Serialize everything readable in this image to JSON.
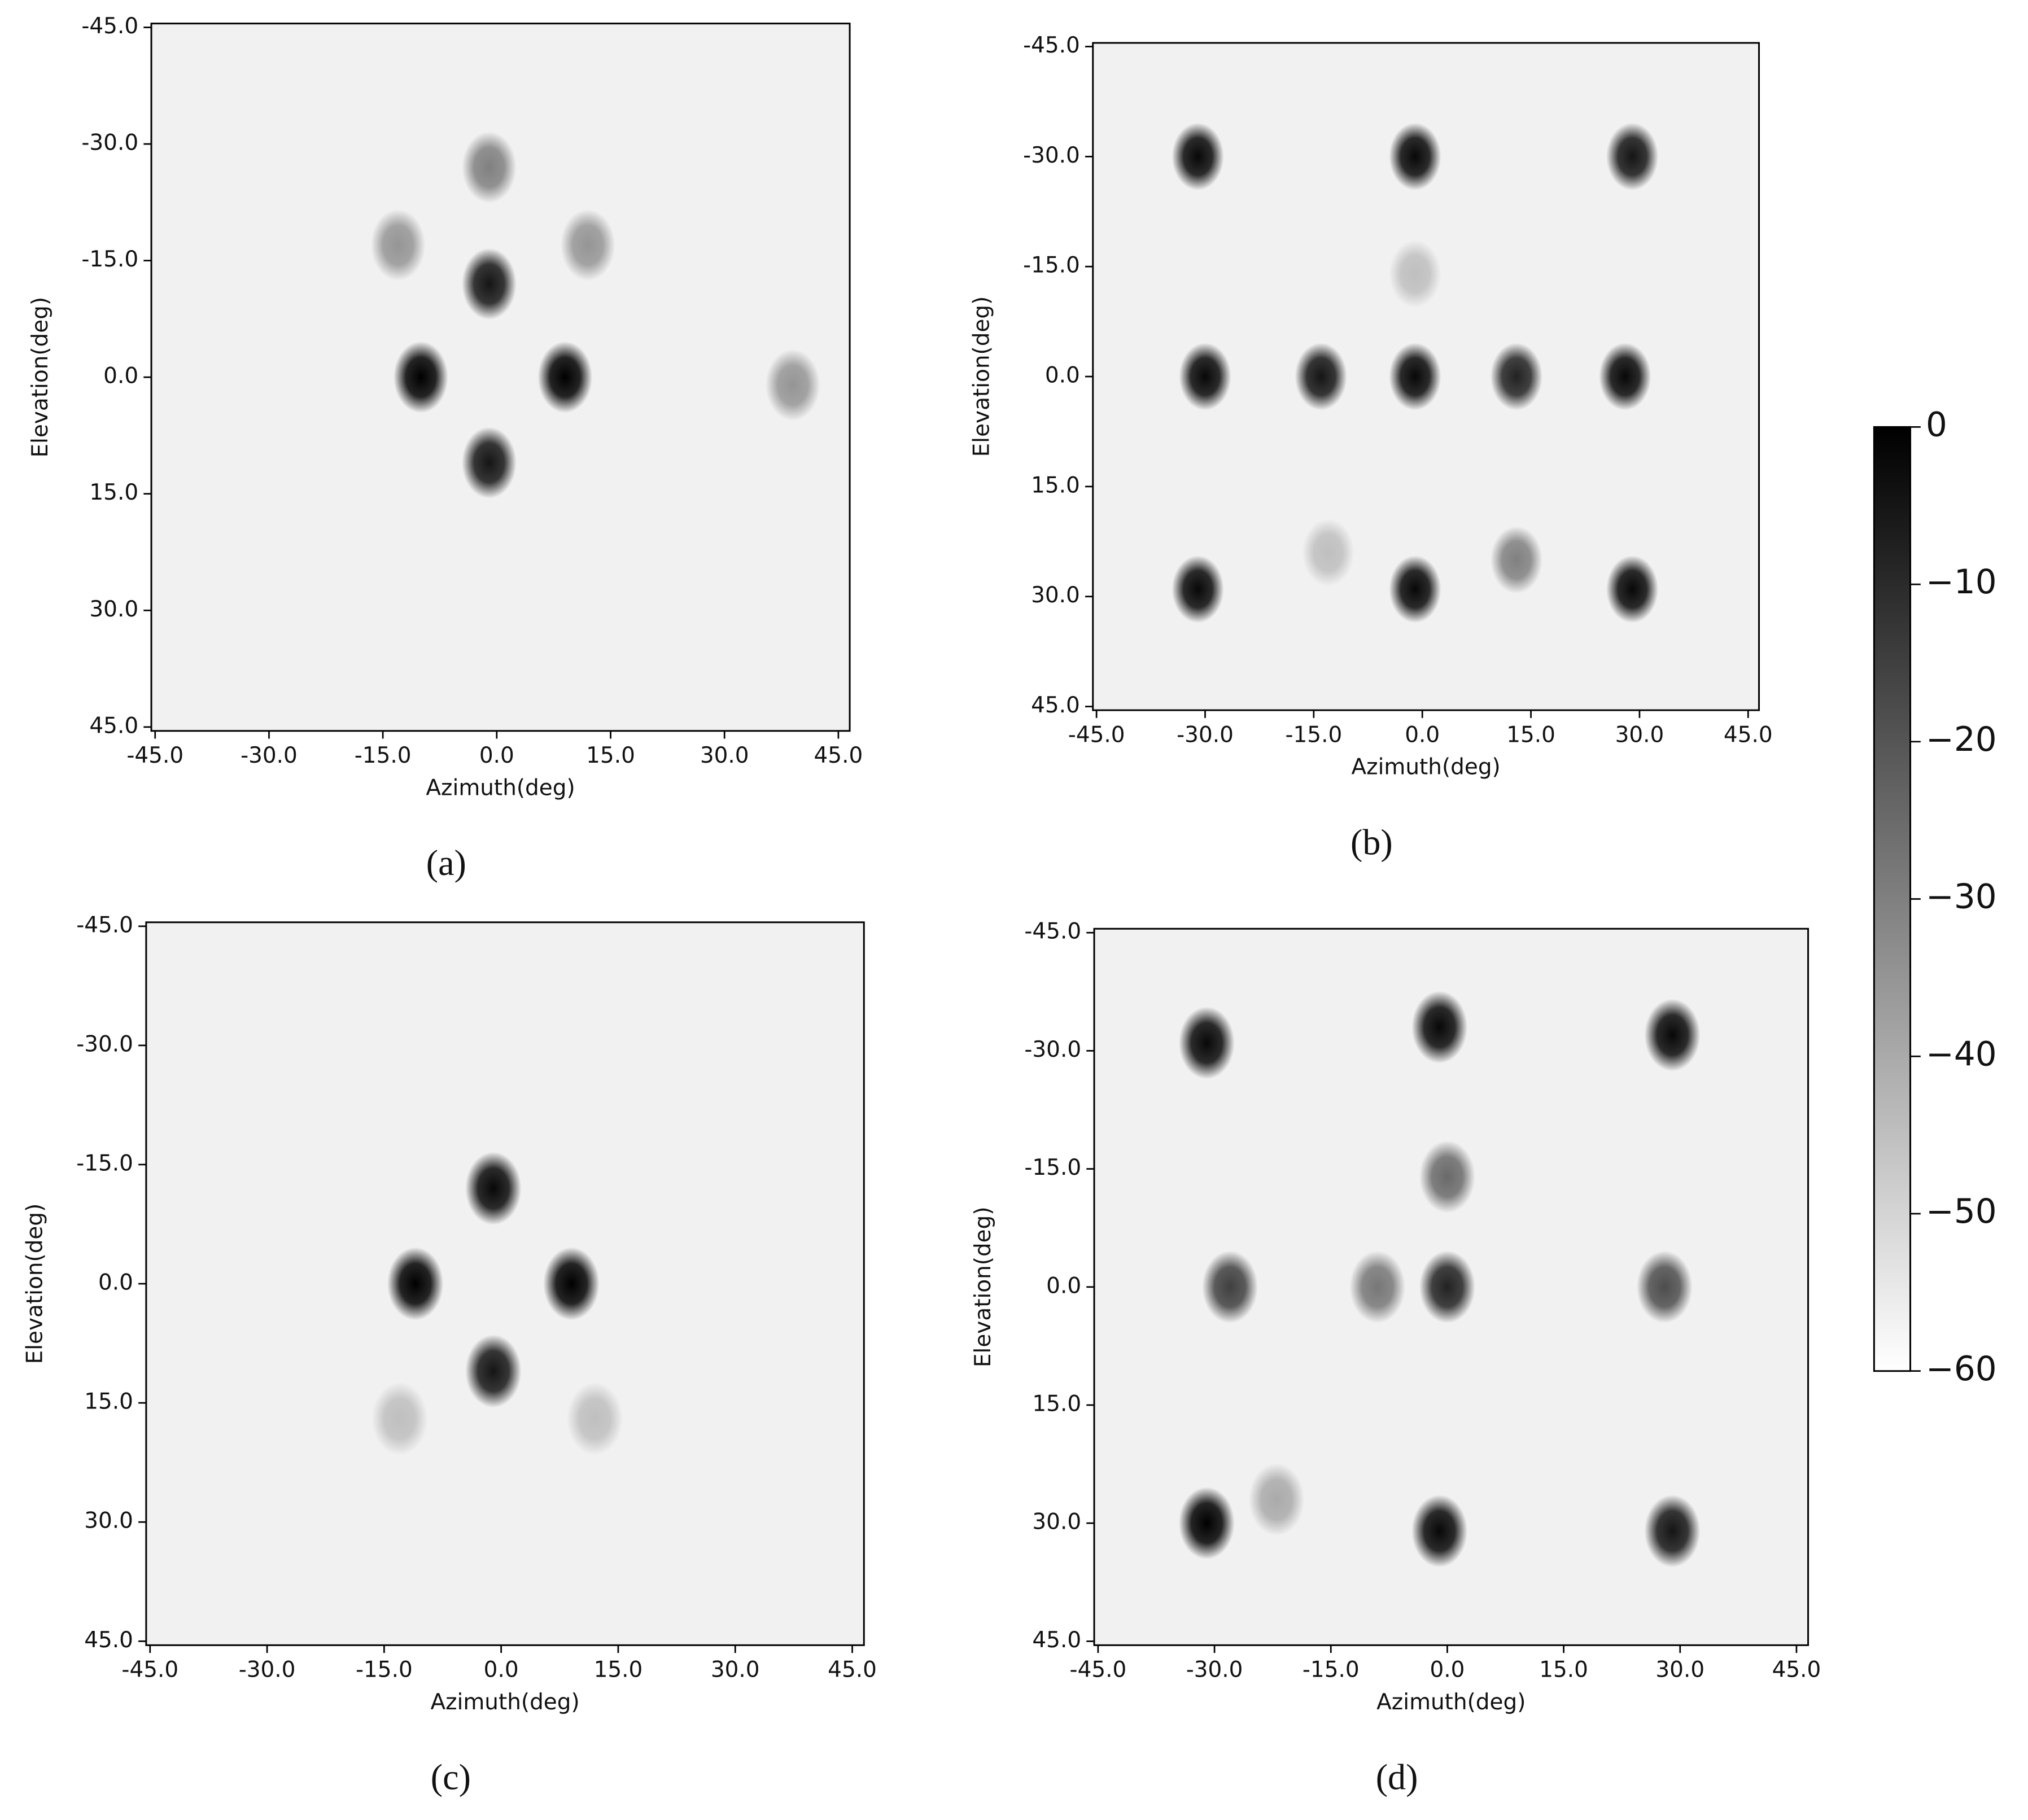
{
  "chart_data": [
    {
      "type": "heatmap",
      "title": "(a)",
      "xlabel": "Azimuth(deg)",
      "ylabel": "Elevation(deg)",
      "x": [
        -1,
        -13,
        12,
        -1,
        -10,
        9,
        -1,
        39
      ],
      "y": [
        -27,
        -17,
        -17,
        -12,
        0,
        0,
        11,
        1
      ],
      "values": [
        -30,
        -35,
        -35,
        -5,
        0,
        0,
        -5,
        -35
      ],
      "xlim": [
        -45.5,
        46.5
      ],
      "ylim": [
        -45.5,
        45.5
      ],
      "y_inverted": true,
      "xticks": [
        {
          "value": -45,
          "label": "-45.0"
        },
        {
          "value": -30,
          "label": "-30.0"
        },
        {
          "value": -15,
          "label": "-15.0"
        },
        {
          "value": 0,
          "label": "0.0"
        },
        {
          "value": 15,
          "label": "15.0"
        },
        {
          "value": 30,
          "label": "30.0"
        },
        {
          "value": 45,
          "label": "45.0"
        }
      ],
      "yticks": [
        {
          "value": -45,
          "label": "-45.0"
        },
        {
          "value": -30,
          "label": "-30.0"
        },
        {
          "value": -15,
          "label": "-15.0"
        },
        {
          "value": 0,
          "label": "0.0"
        },
        {
          "value": 15,
          "label": "15.0"
        },
        {
          "value": 30,
          "label": "30.0"
        },
        {
          "value": 45,
          "label": "45.0"
        }
      ]
    },
    {
      "type": "heatmap",
      "title": "(b)",
      "xlabel": "Azimuth(deg)",
      "ylabel": "Elevation(deg)",
      "x": [
        -31,
        -1,
        29,
        -1,
        -30,
        -14,
        -1,
        13,
        28,
        -31,
        -1,
        29,
        13,
        -13
      ],
      "y": [
        -30,
        -30,
        -30,
        -14,
        0,
        0,
        0,
        0,
        0,
        29,
        29,
        29,
        25,
        24
      ],
      "values": [
        -2,
        -2,
        -5,
        -45,
        -2,
        -5,
        -2,
        -8,
        -2,
        -2,
        -2,
        -2,
        -30,
        -45
      ],
      "xlim": [
        -45.5,
        46.5
      ],
      "ylim": [
        -45.5,
        45.5
      ],
      "y_inverted": true,
      "xticks": [
        {
          "value": -45,
          "label": "-45.0"
        },
        {
          "value": -30,
          "label": "-30.0"
        },
        {
          "value": -15,
          "label": "-15.0"
        },
        {
          "value": 0,
          "label": "0.0"
        },
        {
          "value": 15,
          "label": "15.0"
        },
        {
          "value": 30,
          "label": "30.0"
        },
        {
          "value": 45,
          "label": "45.0"
        }
      ],
      "yticks": [
        {
          "value": -45,
          "label": "-45.0"
        },
        {
          "value": -30,
          "label": "-30.0"
        },
        {
          "value": -15,
          "label": "-15.0"
        },
        {
          "value": 0,
          "label": "0.0"
        },
        {
          "value": 15,
          "label": "15.0"
        },
        {
          "value": 30,
          "label": "30.0"
        },
        {
          "value": 45,
          "label": "45.0"
        }
      ]
    },
    {
      "type": "heatmap",
      "title": "(c)",
      "xlabel": "Azimuth(deg)",
      "ylabel": "Elevation(deg)",
      "x": [
        -1,
        -11,
        9,
        -1,
        -13,
        12
      ],
      "y": [
        -12,
        0,
        0,
        11,
        17,
        17
      ],
      "values": [
        -2,
        0,
        0,
        -5,
        -45,
        -45
      ],
      "xlim": [
        -45.5,
        46.5
      ],
      "ylim": [
        -45.5,
        45.5
      ],
      "y_inverted": true,
      "xticks": [
        {
          "value": -45,
          "label": "-45.0"
        },
        {
          "value": -30,
          "label": "-30.0"
        },
        {
          "value": -15,
          "label": "-15.0"
        },
        {
          "value": 0,
          "label": "0.0"
        },
        {
          "value": 15,
          "label": "15.0"
        },
        {
          "value": 30,
          "label": "30.0"
        },
        {
          "value": 45,
          "label": "45.0"
        }
      ],
      "yticks": [
        {
          "value": -45,
          "label": "-45.0"
        },
        {
          "value": -30,
          "label": "-30.0"
        },
        {
          "value": -15,
          "label": "-15.0"
        },
        {
          "value": 0,
          "label": "0.0"
        },
        {
          "value": 15,
          "label": "15.0"
        },
        {
          "value": 30,
          "label": "30.0"
        },
        {
          "value": 45,
          "label": "45.0"
        }
      ]
    },
    {
      "type": "heatmap",
      "title": "(d)",
      "xlabel": "Azimuth(deg)",
      "ylabel": "Elevation(deg)",
      "x": [
        -31,
        -1,
        29,
        0,
        -28,
        -9,
        0,
        28,
        -31,
        -1,
        29,
        -22
      ],
      "y": [
        -31,
        -33,
        -32,
        -14,
        0,
        0,
        0,
        0,
        30,
        31,
        31,
        27
      ],
      "values": [
        -2,
        -2,
        -2,
        -25,
        -15,
        -28,
        -8,
        -18,
        0,
        -2,
        -5,
        -40
      ],
      "xlim": [
        -45.5,
        46.5
      ],
      "ylim": [
        -45.5,
        45.5
      ],
      "y_inverted": true,
      "xticks": [
        {
          "value": -45,
          "label": "-45.0"
        },
        {
          "value": -30,
          "label": "-30.0"
        },
        {
          "value": -15,
          "label": "-15.0"
        },
        {
          "value": 0,
          "label": "0.0"
        },
        {
          "value": 15,
          "label": "15.0"
        },
        {
          "value": 30,
          "label": "30.0"
        },
        {
          "value": 45,
          "label": "45.0"
        }
      ],
      "yticks": [
        {
          "value": -45,
          "label": "-45.0"
        },
        {
          "value": -30,
          "label": "-30.0"
        },
        {
          "value": -15,
          "label": "-15.0"
        },
        {
          "value": 0,
          "label": "0.0"
        },
        {
          "value": 15,
          "label": "15.0"
        },
        {
          "value": 30,
          "label": "30.0"
        },
        {
          "value": 45,
          "label": "45.0"
        }
      ]
    },
    {
      "type": "colorbar",
      "clim": [
        -60,
        0
      ],
      "cticks": [
        0,
        {
          "value": -10,
          "label": "−10"
        },
        {
          "value": -20,
          "label": "−20"
        },
        {
          "value": -30,
          "label": "−30"
        },
        {
          "value": -40,
          "label": "−40"
        },
        {
          "value": -50,
          "label": "−50"
        },
        {
          "value": -60,
          "label": "−60"
        }
      ]
    }
  ]
}
